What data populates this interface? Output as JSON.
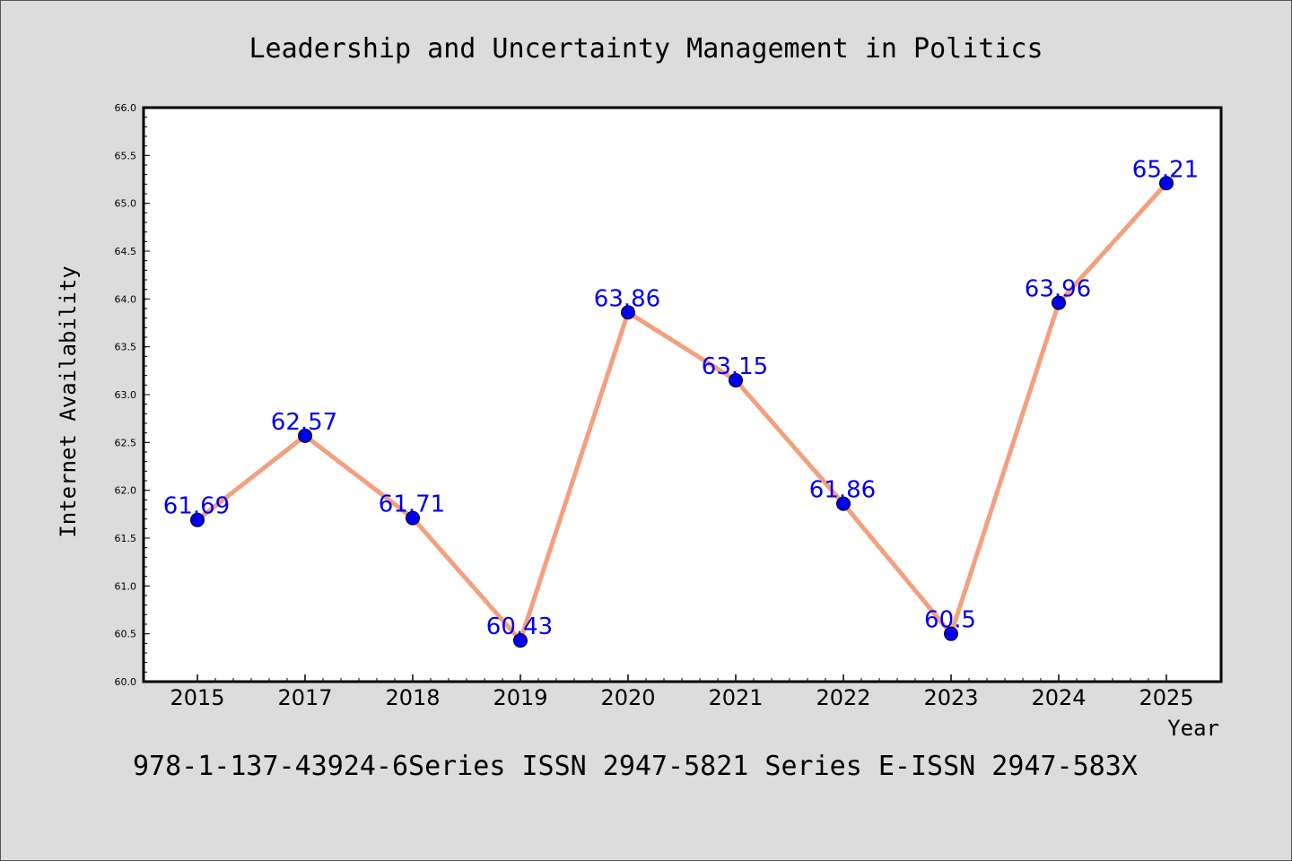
{
  "chart_data": {
    "type": "line",
    "title": "Leadership and Uncertainty Management in Politics",
    "xlabel": "Year",
    "ylabel": "Internet Availability",
    "categories": [
      "2015",
      "2017",
      "2018",
      "2019",
      "2020",
      "2021",
      "2022",
      "2023",
      "2024",
      "2025"
    ],
    "values": [
      61.69,
      62.57,
      61.71,
      60.43,
      63.86,
      63.15,
      61.86,
      60.5,
      63.96,
      65.21
    ],
    "data_labels": [
      "61.69",
      "62.57",
      "61.71",
      "60.43",
      "63.86",
      "63.15",
      "61.86",
      "60.5",
      "63.96",
      "65.21"
    ],
    "ylim": [
      60.0,
      66.0
    ],
    "yticks": [
      "60.0",
      "60.5",
      "61.0",
      "61.5",
      "62.0",
      "62.5",
      "63.0",
      "63.5",
      "64.0",
      "64.5",
      "65.0",
      "65.5",
      "66.0"
    ],
    "grid": false,
    "legend": "none",
    "colors": {
      "line": "#f4a07e",
      "marker": "#0000ee",
      "label": "#0000ee",
      "background": "#dcdcdc",
      "plot_background": "#ffffff"
    }
  },
  "footer": "978-1-137-43924-6Series ISSN 2947-5821 Series E-ISSN 2947-583X"
}
